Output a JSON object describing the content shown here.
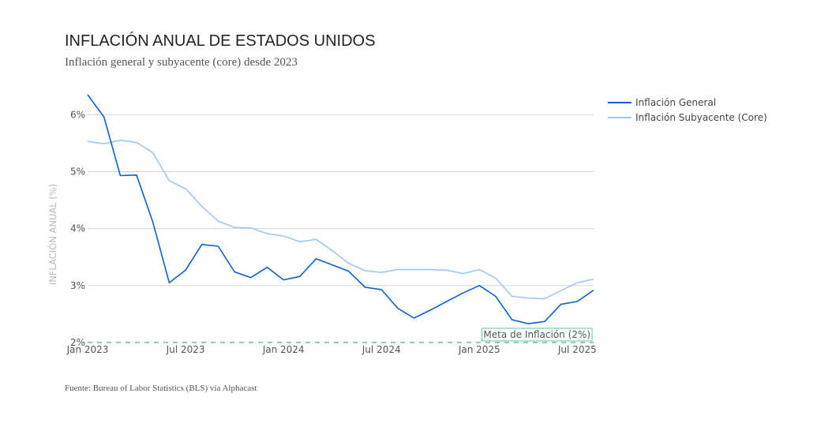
{
  "chart_data": {
    "type": "line",
    "title": "INFLACIÓN ANUAL DE ESTADOS UNIDOS",
    "subtitle": "Inflación general y subyacente (core) desde 2023",
    "ylabel": "INFLACIÓN ANUAL (%)",
    "xlabel": "",
    "ylim": [
      2,
      6.35
    ],
    "xlim": [
      "2023-01",
      "2025-08"
    ],
    "y_ticks": [
      2,
      3,
      4,
      5,
      6
    ],
    "y_tick_labels": [
      "2%",
      "3%",
      "4%",
      "5%",
      "6%"
    ],
    "x_ticks": [
      "2023-01",
      "2023-07",
      "2024-01",
      "2024-07",
      "2025-01",
      "2025-07"
    ],
    "x_tick_labels": [
      "Jan 2023",
      "Jul 2023",
      "Jan 2024",
      "Jul 2024",
      "Jan 2025",
      "Jul 2025"
    ],
    "grid": true,
    "legend_position": "top-right",
    "x": [
      "2023-01",
      "2023-02",
      "2023-03",
      "2023-04",
      "2023-05",
      "2023-06",
      "2023-07",
      "2023-08",
      "2023-09",
      "2023-10",
      "2023-11",
      "2023-12",
      "2024-01",
      "2024-02",
      "2024-03",
      "2024-04",
      "2024-05",
      "2024-06",
      "2024-07",
      "2024-08",
      "2024-09",
      "2024-10",
      "2024-11",
      "2024-12",
      "2025-01",
      "2025-02",
      "2025-03",
      "2025-04",
      "2025-05",
      "2025-06",
      "2025-07",
      "2025-08"
    ],
    "series": [
      {
        "name": "Inflación General",
        "color": "#0a5fd1",
        "values": [
          6.35,
          5.96,
          4.93,
          4.94,
          4.11,
          3.05,
          3.27,
          3.72,
          3.69,
          3.24,
          3.14,
          3.32,
          3.1,
          3.16,
          3.47,
          3.36,
          3.25,
          2.97,
          2.93,
          2.6,
          2.43,
          2.57,
          2.72,
          2.87,
          3.0,
          2.81,
          2.4,
          2.33,
          2.37,
          2.67,
          2.72,
          2.92
        ]
      },
      {
        "name": "Inflación Subyacente (Core)",
        "color": "#9ec8f2",
        "values": [
          5.53,
          5.49,
          5.55,
          5.51,
          5.33,
          4.84,
          4.7,
          4.39,
          4.13,
          4.02,
          4.01,
          3.91,
          3.87,
          3.77,
          3.81,
          3.61,
          3.39,
          3.26,
          3.23,
          3.28,
          3.28,
          3.28,
          3.27,
          3.21,
          3.28,
          3.13,
          2.81,
          2.78,
          2.77,
          2.91,
          3.05,
          3.11
        ]
      }
    ],
    "reference_line": {
      "value": 2,
      "label": "Meta de Inflación (2%)",
      "color": "#5ec4a8"
    },
    "source": "Fuente: Bureau of Labor Statistics (BLS) vía Alphacast"
  }
}
